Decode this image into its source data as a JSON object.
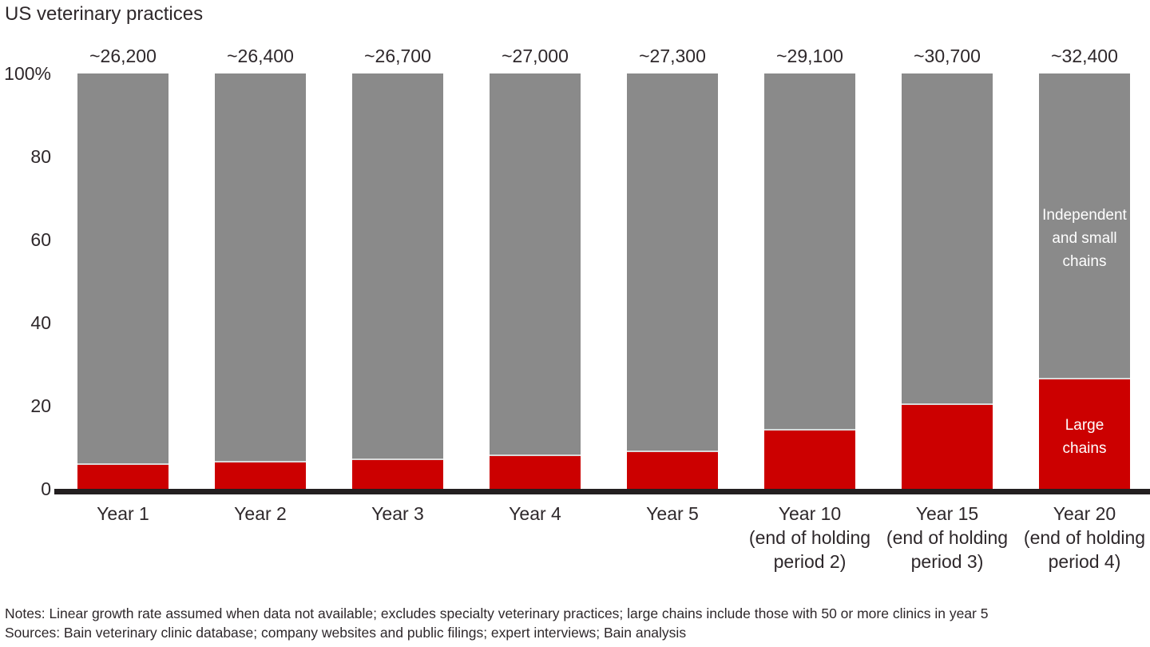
{
  "title": "US veterinary practices",
  "notes": "Notes: Linear growth rate assumed when data not available; excludes specialty veterinary practices; large chains include those with 50 or more clinics in year 5",
  "sources": "Sources: Bain veterinary clinic database; company websites and public filings; expert interviews; Bain analysis",
  "colors": {
    "large_chains": "#cc0000",
    "independent_small_chains": "#8a8a8a",
    "axis": "#231f20",
    "text": "#2e282b",
    "segment_divider": "#d9d9d9",
    "in_bar_label_text": "#ffffff"
  },
  "chart_data": {
    "type": "bar",
    "stacked": true,
    "title": "US veterinary practices",
    "unit": "percent of practices",
    "ylim": [
      0,
      100
    ],
    "grid": false,
    "y_ticks": [
      "100%",
      "80",
      "60",
      "40",
      "20",
      "0"
    ],
    "categories": [
      "Year 1",
      "Year 2",
      "Year 3",
      "Year 4",
      "Year 5",
      "Year 10 (end of holding period 2)",
      "Year 15 (end of holding period 3)",
      "Year 20 (end of holding period 4)"
    ],
    "category_label_lines": [
      [
        "Year 1"
      ],
      [
        "Year 2"
      ],
      [
        "Year 3"
      ],
      [
        "Year 4"
      ],
      [
        "Year 5"
      ],
      [
        "Year 10",
        "(end of holding",
        "period 2)"
      ],
      [
        "Year 15",
        "(end of holding",
        "period 3)"
      ],
      [
        "Year 20",
        "(end of holding",
        "period 4)"
      ]
    ],
    "bar_total_labels": [
      "~26,200",
      "~26,400",
      "~26,700",
      "~27,000",
      "~27,300",
      "~29,100",
      "~30,700",
      "~32,400"
    ],
    "series": [
      {
        "name": "Large chains",
        "color": "#cc0000",
        "values": [
          6.2,
          6.7,
          7.3,
          8.3,
          9.2,
          14.4,
          20.6,
          26.8
        ]
      },
      {
        "name": "Independent and small chains",
        "color": "#8a8a8a",
        "values": [
          93.8,
          93.3,
          92.7,
          91.7,
          90.8,
          85.6,
          79.4,
          73.2
        ]
      }
    ],
    "in_bar_labels": {
      "independent_small_chains": [
        "Independent",
        "and small",
        "chains"
      ],
      "large_chains": [
        "Large",
        "chains"
      ]
    },
    "legend_position": "labels inside last bar"
  }
}
